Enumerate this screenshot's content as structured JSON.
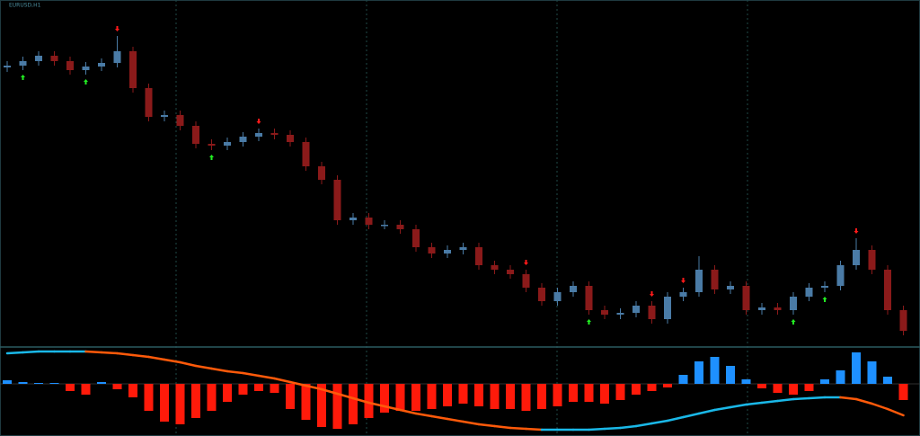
{
  "chart_data": {
    "type": "candlestick",
    "title": "EURUSD,H1",
    "ylim": [
      15,
      400
    ],
    "open": [
      325,
      327,
      332,
      338,
      332,
      322,
      326,
      330,
      343,
      302,
      270,
      272,
      260,
      240,
      238,
      242,
      248,
      252,
      250,
      242,
      215,
      200,
      155,
      158,
      150,
      150,
      145,
      125,
      118,
      122,
      125,
      105,
      100,
      95,
      80,
      65,
      75,
      82,
      55,
      50,
      52,
      60,
      45,
      70,
      75,
      100,
      78,
      82,
      55,
      58,
      55,
      70,
      80,
      82,
      105,
      122,
      100,
      55
    ],
    "high": [
      332,
      337,
      343,
      343,
      337,
      331,
      335,
      360,
      348,
      307,
      277,
      277,
      265,
      245,
      247,
      253,
      257,
      257,
      255,
      247,
      220,
      205,
      163,
      163,
      155,
      155,
      150,
      130,
      127,
      130,
      130,
      110,
      105,
      100,
      85,
      80,
      87,
      87,
      60,
      57,
      65,
      65,
      75,
      80,
      115,
      105,
      87,
      87,
      63,
      63,
      75,
      85,
      87,
      110,
      135,
      127,
      105,
      60
    ],
    "low": [
      320,
      322,
      327,
      327,
      317,
      317,
      321,
      325,
      297,
      265,
      265,
      255,
      235,
      233,
      233,
      237,
      243,
      245,
      237,
      210,
      195,
      150,
      150,
      145,
      145,
      140,
      120,
      113,
      113,
      117,
      100,
      95,
      90,
      75,
      60,
      60,
      70,
      50,
      45,
      45,
      47,
      40,
      40,
      65,
      70,
      73,
      73,
      50,
      50,
      50,
      50,
      65,
      75,
      77,
      100,
      95,
      50,
      27
    ],
    "close": [
      327,
      332,
      338,
      332,
      322,
      326,
      330,
      343,
      302,
      270,
      272,
      260,
      240,
      238,
      242,
      248,
      252,
      250,
      242,
      215,
      200,
      155,
      158,
      150,
      150,
      145,
      125,
      118,
      122,
      125,
      105,
      100,
      95,
      80,
      65,
      75,
      82,
      55,
      50,
      52,
      60,
      45,
      70,
      75,
      100,
      78,
      82,
      55,
      58,
      55,
      70,
      80,
      82,
      105,
      122,
      100,
      55,
      32
    ],
    "up_color": "#4a7ba6",
    "down_color": "#8b1a1a",
    "sell_signals": [
      7,
      16,
      33,
      41,
      43,
      54
    ],
    "buy_signals": [
      1,
      5,
      13,
      37,
      50,
      52
    ],
    "indicator": {
      "ylim": [
        -58,
        39
      ],
      "histogram": [
        4,
        2,
        1,
        1,
        -8,
        -12,
        2,
        -6,
        -15,
        -30,
        -42,
        -45,
        -38,
        -30,
        -20,
        -12,
        -8,
        -10,
        -28,
        -40,
        -48,
        -50,
        -45,
        -38,
        -32,
        -30,
        -30,
        -28,
        -25,
        -22,
        -25,
        -28,
        -28,
        -30,
        -28,
        -25,
        -20,
        -20,
        -22,
        -18,
        -12,
        -8,
        -4,
        10,
        25,
        30,
        20,
        5,
        -5,
        -10,
        -12,
        -8,
        5,
        15,
        35,
        25,
        8,
        -18
      ],
      "positive_color": "#1e90ff",
      "negative_color": "#ff1a0a",
      "line": [
        34,
        35,
        36,
        36,
        36,
        36,
        35,
        34,
        32,
        30,
        27,
        24,
        20,
        17,
        14,
        12,
        9,
        6,
        2,
        -2,
        -6,
        -11,
        -16,
        -21,
        -25,
        -29,
        -33,
        -36,
        -39,
        -42,
        -45,
        -47,
        -49,
        -50,
        -51,
        -51,
        -51,
        -51,
        -50,
        -49,
        -47,
        -44,
        -41,
        -37,
        -33,
        -29,
        -26,
        -23,
        -21,
        -19,
        -17,
        -16,
        -15,
        -15,
        -17,
        -22,
        -28,
        -35
      ],
      "rising_color": "#1ab8e8",
      "falling_color": "#ff5a0a"
    }
  }
}
